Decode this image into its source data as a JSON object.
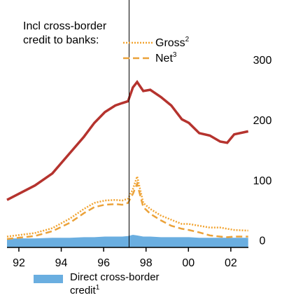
{
  "chart_data": {
    "type": "line",
    "legend_heading": [
      "Incl cross-border",
      "credit to banks:"
    ],
    "x": [
      1991.44,
      1992.76,
      1993.58,
      1994.41,
      1995.07,
      1995.56,
      1996.06,
      1996.55,
      1996.88,
      1997.15,
      1997.38,
      1997.58,
      1997.87,
      1998.2,
      1998.7,
      1999.19,
      1999.69,
      2000.02,
      2000.51,
      2001.01,
      2001.5,
      2001.83,
      2002.16,
      2002.82
    ],
    "series": [
      {
        "color": "#b5332e",
        "style": "solid",
        "values": [
          67,
          91,
          111,
          145,
          172,
          195,
          213,
          224,
          228,
          231,
          254,
          263,
          248,
          250,
          238,
          224,
          201,
          195,
          178,
          174,
          164,
          162,
          176,
          181
        ]
      },
      {
        "name": "Gross",
        "footnote": "2",
        "color": "#f2a431",
        "style": "dotted",
        "values": [
          6,
          12,
          20,
          36,
          52,
          62,
          66,
          67,
          66,
          69,
          85,
          106,
          62,
          52,
          41,
          34,
          27,
          27,
          24,
          21,
          21,
          19,
          17,
          16
        ]
      },
      {
        "name": "Net",
        "footnote": "3",
        "color": "#eba23a",
        "style": "dashed",
        "values": [
          2,
          7,
          15,
          29,
          45,
          55,
          59,
          60,
          59,
          62,
          77,
          94,
          55,
          44,
          33,
          24,
          19,
          17,
          13,
          8,
          6,
          5,
          6,
          6
        ]
      },
      {
        "name": "Direct cross-border credit",
        "footnote": "1",
        "color": "#6aaee0",
        "style": "area",
        "values": [
          3,
          3,
          4,
          4,
          5,
          5,
          6,
          6,
          6,
          7,
          9,
          8,
          6,
          6,
          5,
          5,
          5,
          5,
          4,
          4,
          4,
          4,
          4,
          4
        ]
      }
    ],
    "xlim": [
      1991.44,
      2002.83
    ],
    "xticks": [
      {
        "value": 1992,
        "label": "92"
      },
      {
        "value": 1994,
        "label": "94"
      },
      {
        "value": 1996,
        "label": "96"
      },
      {
        "value": 1998,
        "label": "98"
      },
      {
        "value": 2000,
        "label": "00"
      },
      {
        "value": 2002,
        "label": "02"
      }
    ],
    "ylim": [
      -12,
      390
    ],
    "yticks": [
      0,
      100,
      200,
      300
    ],
    "vline_x": 1997.2
  }
}
